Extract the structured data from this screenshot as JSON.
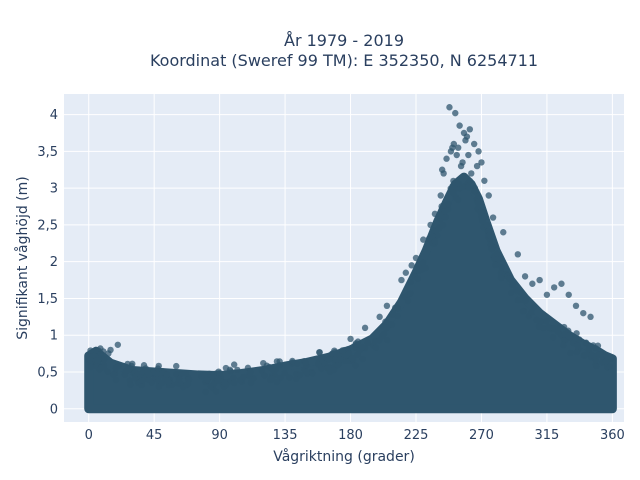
{
  "chart_data": {
    "type": "scatter",
    "title": "År 1979 - 2019",
    "subtitle": "Koordinat (Sweref 99 TM): E 352350, N 6254711",
    "xlabel": "Vågriktning (grader)",
    "ylabel": "Signifikant våghöjd (m)",
    "xlim": [
      -17,
      368
    ],
    "ylim": [
      -0.18,
      4.28
    ],
    "xticks": [
      0,
      45,
      90,
      135,
      180,
      225,
      270,
      315,
      360
    ],
    "xtick_labels": [
      "0",
      "45",
      "90",
      "135",
      "180",
      "225",
      "270",
      "315",
      "360"
    ],
    "yticks": [
      0,
      0.5,
      1,
      1.5,
      2,
      2.5,
      3,
      3.5,
      4
    ],
    "ytick_labels": [
      "0",
      "0,5",
      "1",
      "1,5",
      "2",
      "2,5",
      "3",
      "3,5",
      "4"
    ],
    "grid": true,
    "legend": "none",
    "marker_color": "#2f566e",
    "envelope": {
      "description": "upper boundary of the dense point cloud (direction in degrees, wave height in m)",
      "x": [
        0,
        5,
        15,
        30,
        45,
        60,
        75,
        90,
        105,
        120,
        135,
        150,
        165,
        180,
        195,
        205,
        215,
        225,
        232,
        240,
        247,
        252,
        258,
        263,
        268,
        273,
        280,
        290,
        300,
        310,
        320,
        330,
        340,
        350,
        355,
        360
      ],
      "y": [
        0.72,
        0.78,
        0.62,
        0.52,
        0.5,
        0.48,
        0.46,
        0.45,
        0.48,
        0.52,
        0.58,
        0.63,
        0.7,
        0.8,
        0.95,
        1.15,
        1.45,
        1.85,
        2.15,
        2.55,
        2.85,
        3.05,
        3.15,
        3.05,
        2.85,
        2.55,
        2.15,
        1.75,
        1.5,
        1.3,
        1.15,
        1.0,
        0.88,
        0.78,
        0.72,
        0.68
      ]
    },
    "outliers": {
      "x": [
        248,
        252,
        255,
        258,
        260,
        262,
        265,
        250,
        246,
        268,
        256,
        244,
        270,
        253,
        259,
        275,
        242,
        278,
        285,
        295,
        300,
        310,
        320,
        325,
        330,
        335,
        340,
        230,
        235,
        238,
        225,
        215,
        205,
        200,
        190,
        180,
        20,
        15,
        10,
        8,
        5,
        100,
        160,
        120,
        140,
        243,
        257,
        263,
        251,
        249,
        261,
        254,
        267,
        272,
        305,
        315,
        345,
        222,
        218
      ],
      "y": [
        4.1,
        4.02,
        3.85,
        3.75,
        3.7,
        3.8,
        3.6,
        3.55,
        3.4,
        3.5,
        3.3,
        3.2,
        3.35,
        3.45,
        3.65,
        2.9,
        2.9,
        2.6,
        2.4,
        2.1,
        1.8,
        1.75,
        1.65,
        1.7,
        1.55,
        1.4,
        1.3,
        2.3,
        2.5,
        2.65,
        2.05,
        1.75,
        1.4,
        1.25,
        1.1,
        0.95,
        0.87,
        0.8,
        0.78,
        0.82,
        0.8,
        0.6,
        0.68,
        0.62,
        0.65,
        3.25,
        3.35,
        3.2,
        3.6,
        3.5,
        3.45,
        3.55,
        3.3,
        3.1,
        1.7,
        1.55,
        1.25,
        1.95,
        1.85
      ]
    }
  }
}
